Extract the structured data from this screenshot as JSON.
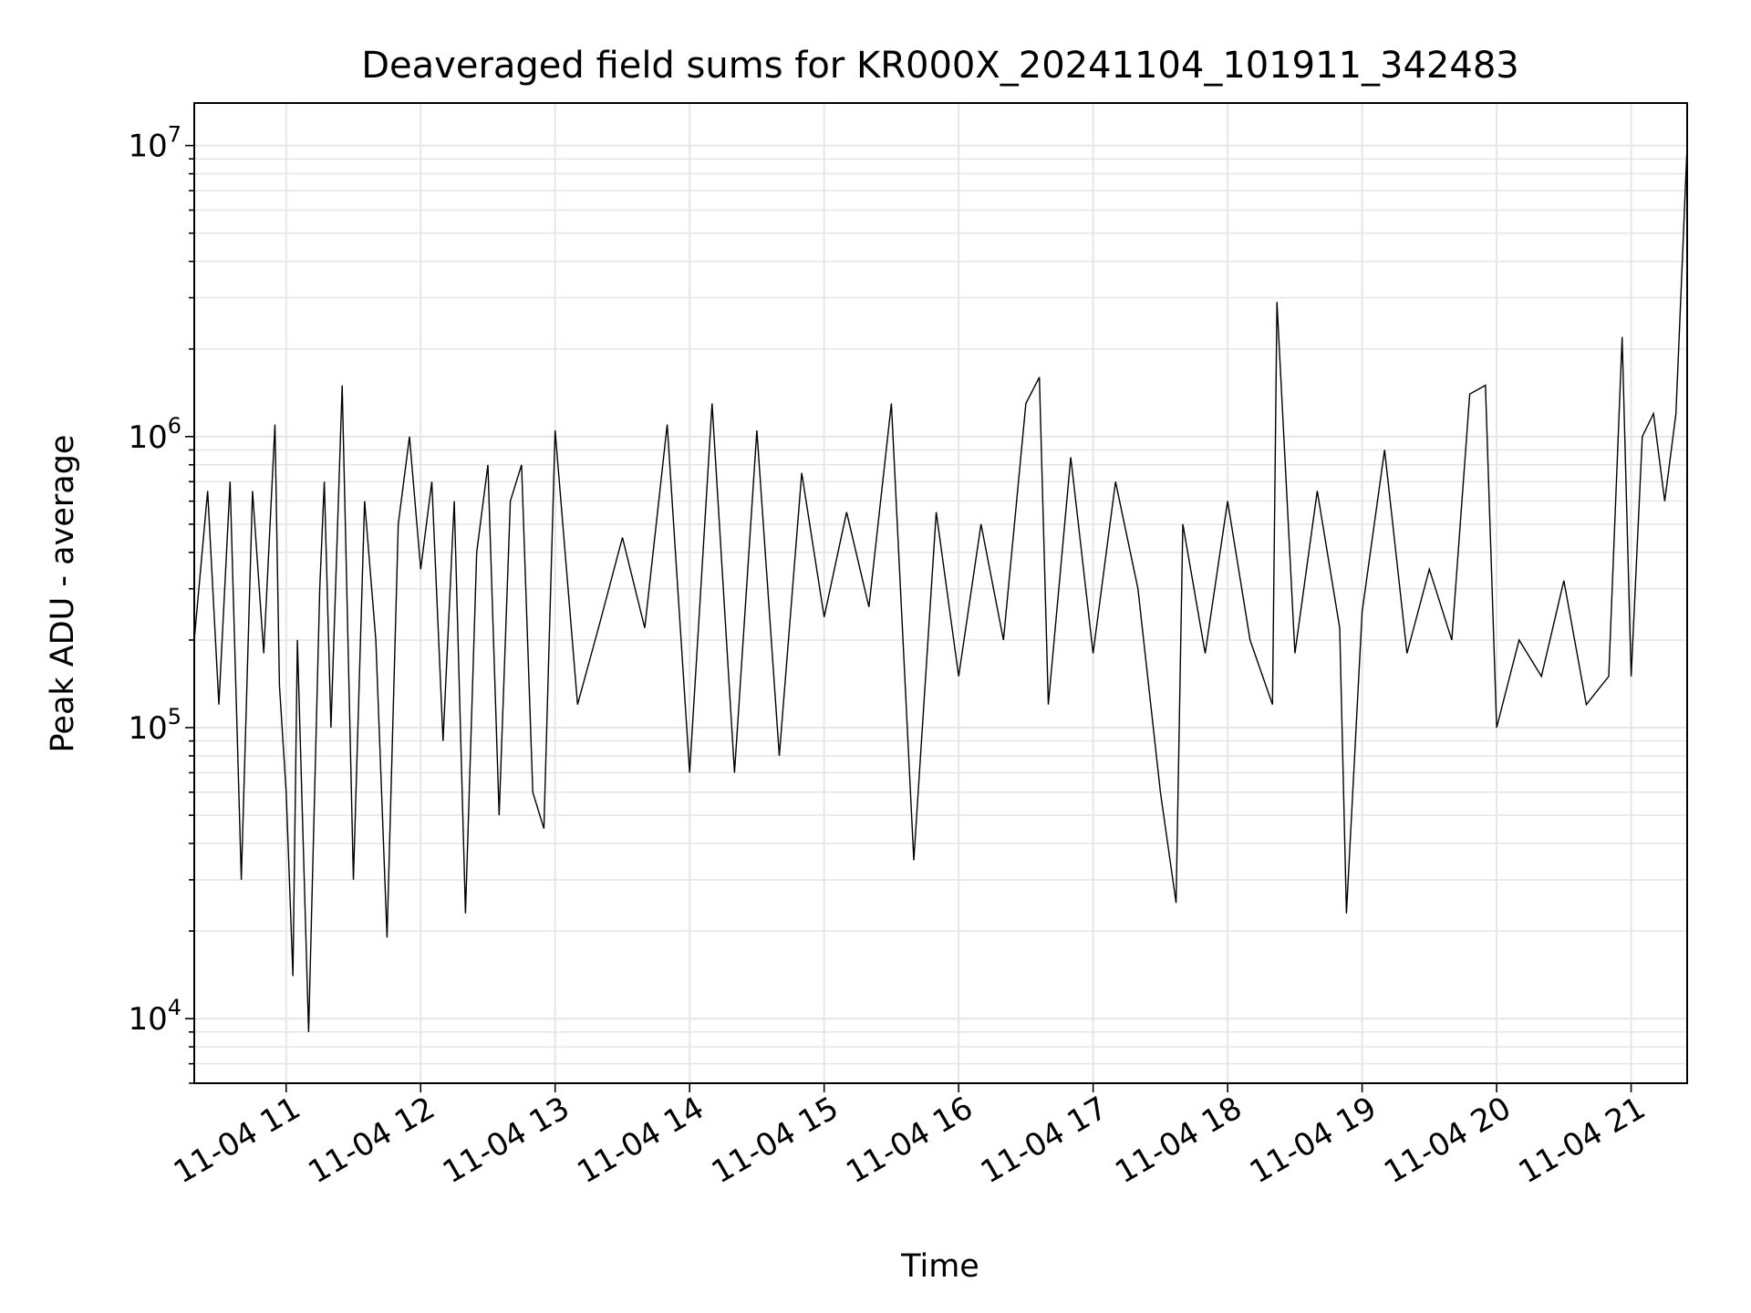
{
  "chart_data": {
    "type": "line",
    "title": "Deaveraged field sums for KR000X_20241104_101911_342483",
    "xlabel": "Time",
    "ylabel": "Peak ADU - average",
    "yscale": "log",
    "ylim": [
      6000,
      14000000
    ],
    "xlim": [
      "2024-11-04 10:19",
      "2024-11-04 21:25"
    ],
    "x_ticks": [
      "11-04 11",
      "11-04 12",
      "11-04 13",
      "11-04 14",
      "11-04 15",
      "11-04 16",
      "11-04 17",
      "11-04 18",
      "11-04 19",
      "11-04 20",
      "11-04 21"
    ],
    "x_tick_times": [
      "2024-11-04 11:00",
      "2024-11-04 12:00",
      "2024-11-04 13:00",
      "2024-11-04 14:00",
      "2024-11-04 15:00",
      "2024-11-04 16:00",
      "2024-11-04 17:00",
      "2024-11-04 18:00",
      "2024-11-04 19:00",
      "2024-11-04 20:00",
      "2024-11-04 21:00"
    ],
    "y_ticks": [
      {
        "value": 10000,
        "base": "10",
        "exp": "4"
      },
      {
        "value": 100000,
        "base": "10",
        "exp": "5"
      },
      {
        "value": 1000000,
        "base": "10",
        "exp": "6"
      },
      {
        "value": 10000000,
        "base": "10",
        "exp": "7"
      }
    ],
    "grid": true,
    "grid_color": "#e6e6e6",
    "line_color": "#000000",
    "series": [
      {
        "x": [
          "2024-11-04 10:19",
          "2024-11-04 10:25",
          "2024-11-04 10:30",
          "2024-11-04 10:35",
          "2024-11-04 10:40",
          "2024-11-04 10:45",
          "2024-11-04 10:50",
          "2024-11-04 10:55",
          "2024-11-04 10:57",
          "2024-11-04 11:00",
          "2024-11-04 11:03",
          "2024-11-04 11:05",
          "2024-11-04 11:10",
          "2024-11-04 11:15",
          "2024-11-04 11:17",
          "2024-11-04 11:20",
          "2024-11-04 11:25",
          "2024-11-04 11:30",
          "2024-11-04 11:35",
          "2024-11-04 11:40",
          "2024-11-04 11:45",
          "2024-11-04 11:50",
          "2024-11-04 11:55",
          "2024-11-04 12:00",
          "2024-11-04 12:05",
          "2024-11-04 12:10",
          "2024-11-04 12:15",
          "2024-11-04 12:20",
          "2024-11-04 12:25",
          "2024-11-04 12:30",
          "2024-11-04 12:35",
          "2024-11-04 12:40",
          "2024-11-04 12:45",
          "2024-11-04 12:50",
          "2024-11-04 12:55",
          "2024-11-04 13:00",
          "2024-11-04 13:10",
          "2024-11-04 13:20",
          "2024-11-04 13:30",
          "2024-11-04 13:40",
          "2024-11-04 13:50",
          "2024-11-04 14:00",
          "2024-11-04 14:10",
          "2024-11-04 14:20",
          "2024-11-04 14:30",
          "2024-11-04 14:40",
          "2024-11-04 14:50",
          "2024-11-04 15:00",
          "2024-11-04 15:10",
          "2024-11-04 15:20",
          "2024-11-04 15:30",
          "2024-11-04 15:40",
          "2024-11-04 15:50",
          "2024-11-04 16:00",
          "2024-11-04 16:10",
          "2024-11-04 16:20",
          "2024-11-04 16:30",
          "2024-11-04 16:36",
          "2024-11-04 16:40",
          "2024-11-04 16:50",
          "2024-11-04 17:00",
          "2024-11-04 17:10",
          "2024-11-04 17:20",
          "2024-11-04 17:30",
          "2024-11-04 17:37",
          "2024-11-04 17:40",
          "2024-11-04 17:50",
          "2024-11-04 18:00",
          "2024-11-04 18:10",
          "2024-11-04 18:20",
          "2024-11-04 18:22",
          "2024-11-04 18:30",
          "2024-11-04 18:40",
          "2024-11-04 18:50",
          "2024-11-04 18:53",
          "2024-11-04 19:00",
          "2024-11-04 19:10",
          "2024-11-04 19:20",
          "2024-11-04 19:30",
          "2024-11-04 19:40",
          "2024-11-04 19:48",
          "2024-11-04 19:55",
          "2024-11-04 20:00",
          "2024-11-04 20:10",
          "2024-11-04 20:20",
          "2024-11-04 20:30",
          "2024-11-04 20:40",
          "2024-11-04 20:50",
          "2024-11-04 20:56",
          "2024-11-04 21:00",
          "2024-11-04 21:05",
          "2024-11-04 21:10",
          "2024-11-04 21:15",
          "2024-11-04 21:20",
          "2024-11-04 21:25"
        ],
        "values": [
          200000,
          650000,
          120000,
          700000,
          30000,
          650000,
          180000,
          1100000,
          140000,
          60000,
          14000,
          200000,
          9000,
          300000,
          700000,
          100000,
          1500000,
          30000,
          600000,
          200000,
          19000,
          500000,
          1000000,
          350000,
          700000,
          90000,
          600000,
          23000,
          400000,
          800000,
          50000,
          600000,
          800000,
          60000,
          45000,
          1050000,
          120000,
          230000,
          450000,
          220000,
          1100000,
          70000,
          1300000,
          70000,
          1050000,
          80000,
          750000,
          240000,
          550000,
          260000,
          1300000,
          35000,
          550000,
          150000,
          500000,
          200000,
          1300000,
          1600000,
          120000,
          850000,
          180000,
          700000,
          300000,
          60000,
          25000,
          500000,
          180000,
          600000,
          200000,
          120000,
          2900000,
          180000,
          650000,
          220000,
          23000,
          250000,
          900000,
          180000,
          350000,
          200000,
          1400000,
          1500000,
          100000,
          200000,
          150000,
          320000,
          120000,
          150000,
          2200000,
          150000,
          1000000,
          1200000,
          600000,
          1200000,
          10000000
        ]
      }
    ]
  }
}
